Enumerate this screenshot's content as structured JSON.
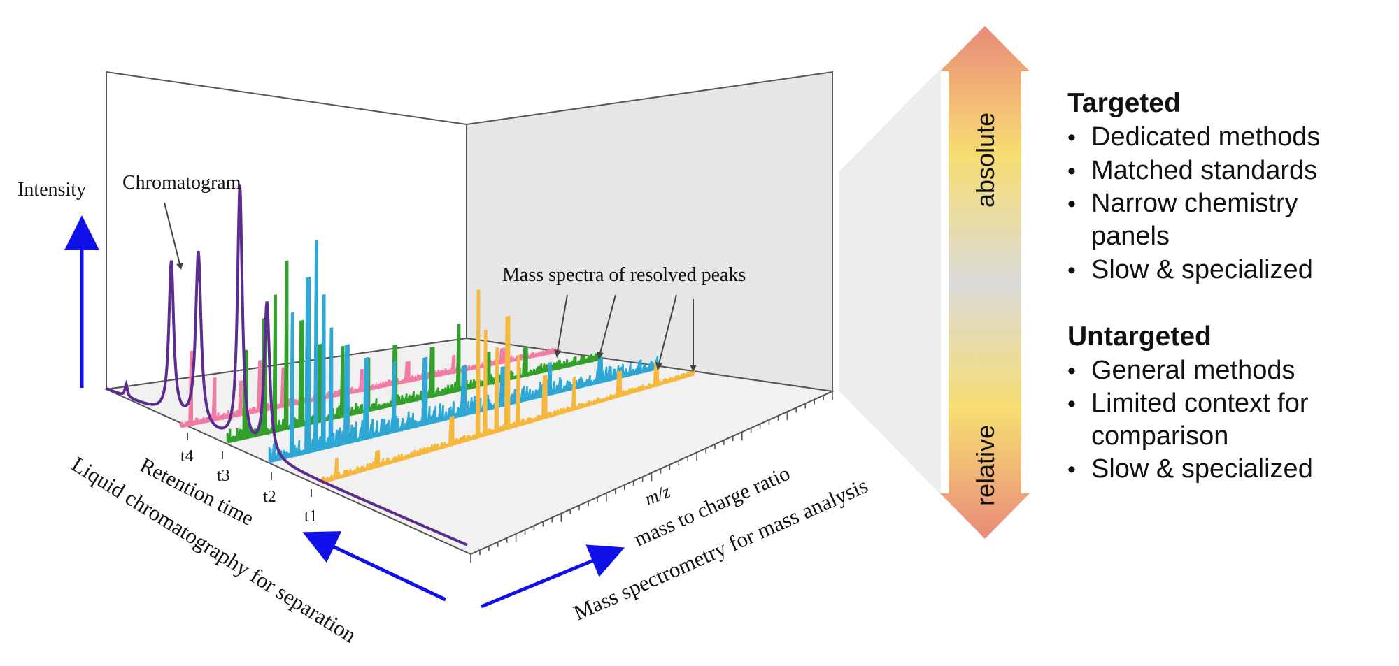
{
  "labels": {
    "intensity": "Intensity",
    "chromatogram": "Chromatogram",
    "mass_spectra": "Mass spectra of resolved peaks",
    "retention_time": "Retention time",
    "lc_axis": "Liquid chromatography for separation",
    "mz": "m/z",
    "mass_to_charge": "mass to charge ratio",
    "ms_axis": "Mass spectrometry for mass analysis"
  },
  "time_ticks": [
    "t4",
    "t3",
    "t2",
    "t1"
  ],
  "scale_bar": {
    "top_label": "absolute",
    "bottom_label": "relative"
  },
  "targeted": {
    "title": "Targeted",
    "items": [
      "Dedicated methods",
      "Matched standards",
      "Narrow chemistry",
      "panels",
      "Slow & specialized"
    ]
  },
  "untargeted": {
    "title": "Untargeted",
    "items": [
      "General methods",
      "Limited context for",
      "comparison",
      "Slow & specialized"
    ]
  },
  "colors": {
    "chromatogram": "#5b2d8e",
    "spectrum_pink": "#f07ba5",
    "spectrum_green": "#33a02c",
    "spectrum_blue": "#2ea7d4",
    "spectrum_orange": "#f5b83d",
    "arrow_blue": "#1010e8",
    "gradient_top": "#e98a7a",
    "gradient_mid": "#f7dd72",
    "gradient_gray": "#d9d9d9"
  }
}
